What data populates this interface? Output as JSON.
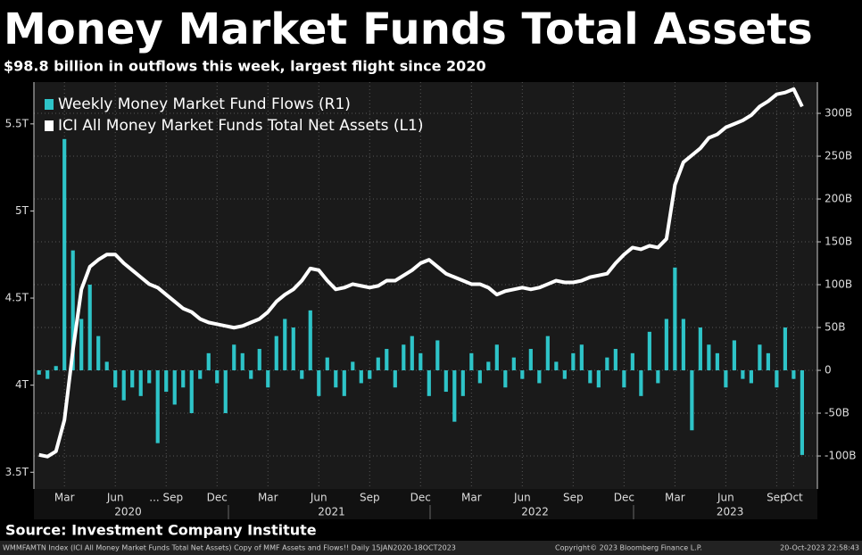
{
  "chart_data": {
    "type": "bar-line",
    "title": "Money Market Funds Total Assets",
    "subtitle": "$98.8 billion in outflows this week, largest flight since 2020",
    "source": "Source: Investment Company Institute",
    "footer": [
      "WMMFAMTN Index (ICI All Money Market Funds Total Net Assets) Copy of MMF Assets and Flows!! Daily 15JAN2020-18OCT2023",
      "Copyright© 2023 Bloomberg Finance L.P.",
      "20-Oct-2023 22:58:43"
    ],
    "xlim": [
      -0.6,
      91.8
    ],
    "xticks": [
      {
        "value": 3,
        "label": "Mar"
      },
      {
        "value": 9,
        "label": "Jun"
      },
      {
        "value": 15,
        "label": "... Sep"
      },
      {
        "value": 21,
        "label": "Dec"
      },
      {
        "value": 27,
        "label": "Mar"
      },
      {
        "value": 33,
        "label": "Jun"
      },
      {
        "value": 39,
        "label": "Sep"
      },
      {
        "value": 45,
        "label": "Dec"
      },
      {
        "value": 51,
        "label": "Mar"
      },
      {
        "value": 57,
        "label": "Jun"
      },
      {
        "value": 63,
        "label": "Sep"
      },
      {
        "value": 69,
        "label": "Dec"
      },
      {
        "value": 75,
        "label": "Mar"
      },
      {
        "value": 81,
        "label": "Jun"
      },
      {
        "value": 87,
        "label": "Sep"
      },
      {
        "value": 89,
        "label": "Oct"
      }
    ],
    "year_labels": [
      {
        "value": 10.5,
        "label": "2020"
      },
      {
        "value": 34.5,
        "label": "2021"
      },
      {
        "value": 58.5,
        "label": "2022"
      },
      {
        "value": 81.5,
        "label": "2023"
      }
    ],
    "ylim": [
      3.404,
      5.74
    ],
    "yticks": [
      {
        "value": 3.5,
        "label": "3.5T"
      },
      {
        "value": 4,
        "label": "4T"
      },
      {
        "value": 4.5,
        "label": "4.5T"
      },
      {
        "value": 5,
        "label": "5T"
      },
      {
        "value": 5.5,
        "label": "5.5T"
      }
    ],
    "y2lim": [
      -138.5,
      336.5
    ],
    "y2ticks": [
      {
        "value": -100,
        "label": "-100B"
      },
      {
        "value": -50,
        "label": "-50B"
      },
      {
        "value": 0,
        "label": "0"
      },
      {
        "value": 50,
        "label": "50B"
      },
      {
        "value": 100,
        "label": "100B"
      },
      {
        "value": 150,
        "label": "150B"
      },
      {
        "value": 200,
        "label": "200B"
      },
      {
        "value": 250,
        "label": "250B"
      },
      {
        "value": 300,
        "label": "300B"
      }
    ],
    "series": [
      {
        "name": "Weekly Money Market Fund Flows (R1)",
        "color": "#2ec4c8",
        "axis": "y2",
        "kind": "bar",
        "values": [
          -5,
          -10,
          5,
          270,
          140,
          60,
          100,
          40,
          10,
          -20,
          -35,
          -20,
          -30,
          -15,
          -85,
          -25,
          -40,
          -20,
          -50,
          -10,
          20,
          -15,
          -50,
          30,
          20,
          -10,
          25,
          -20,
          40,
          60,
          50,
          -10,
          70,
          -30,
          15,
          -20,
          -30,
          10,
          -15,
          -10,
          15,
          25,
          -20,
          30,
          40,
          20,
          -30,
          35,
          -25,
          -60,
          -30,
          20,
          -15,
          10,
          30,
          -20,
          15,
          -10,
          25,
          -15,
          40,
          10,
          -10,
          20,
          30,
          -15,
          -20,
          15,
          25,
          -20,
          20,
          -30,
          45,
          -15,
          60,
          120,
          60,
          -70,
          50,
          30,
          20,
          -20,
          35,
          -10,
          -15,
          30,
          20,
          -20,
          50,
          -10,
          -98.8
        ]
      },
      {
        "name": "ICI All Money Market Funds Total Net Assets  (L1)",
        "color": "#ffffff",
        "axis": "y",
        "kind": "line",
        "values": [
          3.6,
          3.59,
          3.62,
          3.8,
          4.2,
          4.55,
          4.68,
          4.72,
          4.75,
          4.75,
          4.7,
          4.66,
          4.62,
          4.58,
          4.56,
          4.52,
          4.48,
          4.44,
          4.42,
          4.38,
          4.36,
          4.35,
          4.34,
          4.33,
          4.34,
          4.36,
          4.38,
          4.42,
          4.48,
          4.52,
          4.55,
          4.6,
          4.67,
          4.66,
          4.6,
          4.55,
          4.56,
          4.58,
          4.57,
          4.56,
          4.57,
          4.6,
          4.6,
          4.63,
          4.66,
          4.7,
          4.72,
          4.68,
          4.64,
          4.62,
          4.6,
          4.58,
          4.58,
          4.56,
          4.52,
          4.54,
          4.55,
          4.56,
          4.55,
          4.56,
          4.58,
          4.6,
          4.59,
          4.59,
          4.6,
          4.62,
          4.63,
          4.64,
          4.7,
          4.75,
          4.79,
          4.78,
          4.8,
          4.79,
          4.84,
          5.15,
          5.28,
          5.32,
          5.36,
          5.42,
          5.44,
          5.48,
          5.5,
          5.52,
          5.55,
          5.6,
          5.63,
          5.67,
          5.68,
          5.7,
          5.6
        ]
      }
    ]
  }
}
